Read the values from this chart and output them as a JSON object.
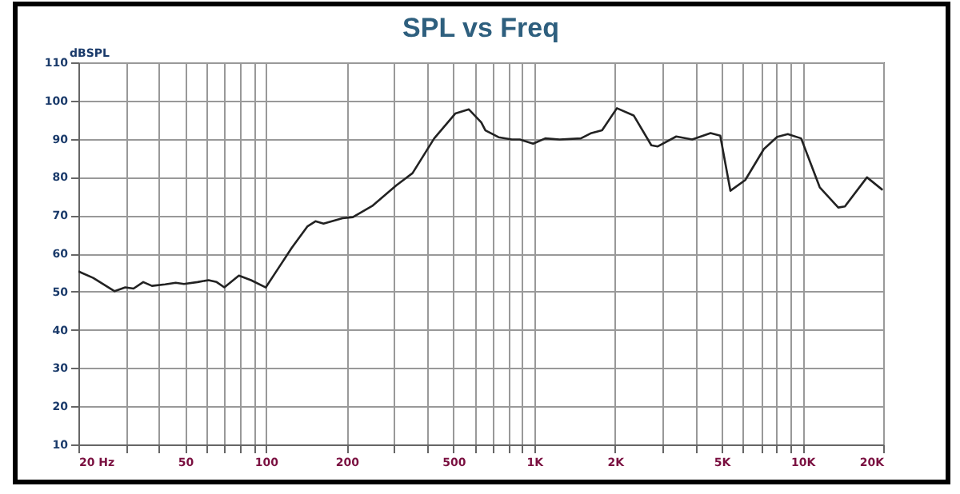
{
  "chart_data": {
    "type": "line",
    "title": "SPL vs Freq",
    "ylabel": "dBSPL",
    "x": [
      20,
      22.7,
      27.3,
      29.9,
      32.1,
      34.9,
      37.6,
      42.1,
      46.1,
      49.5,
      55.6,
      61.1,
      65.5,
      70,
      79.3,
      88,
      99.9,
      111,
      125,
      143,
      153,
      164,
      193,
      211,
      249,
      306,
      352,
      424,
      508,
      571,
      635,
      658,
      737,
      826,
      884,
      991,
      1100,
      1244,
      1493,
      1635,
      1791,
      2034,
      2349,
      2734,
      2889,
      3385,
      3883,
      4545,
      4938,
      5387,
      6121,
      7180,
      8050,
      8817,
      9888,
      11600,
      13600,
      14400,
      17400,
      19900
    ],
    "series": [
      {
        "color": "#222222",
        "values": [
          55.3,
          53.6,
          50.1,
          51.1,
          50.8,
          52.5,
          51.5,
          51.9,
          52.3,
          52,
          52.5,
          53,
          52.5,
          51.1,
          54.2,
          53,
          51.1,
          56,
          61.5,
          67.1,
          68.4,
          67.8,
          69.2,
          69.5,
          72.4,
          77.8,
          81,
          90.1,
          96.6,
          97.7,
          94.3,
          92.2,
          90.4,
          89.8,
          89.8,
          88.7,
          90.1,
          89.8,
          90.1,
          91.5,
          92.2,
          98,
          96.1,
          88.3,
          88,
          90.6,
          89.8,
          91.5,
          90.8,
          76.4,
          79.2,
          87.3,
          90.5,
          91.2,
          90.1,
          77.3,
          72,
          72.3,
          79.9,
          76.6
        ]
      }
    ],
    "log": "x",
    "xlim": [
      20,
      20000
    ],
    "ylim": [
      10,
      110
    ],
    "xticks": [
      {
        "value": 20,
        "label": "20 Hz"
      },
      {
        "value": 30,
        "label": null
      },
      {
        "value": 40,
        "label": null
      },
      50,
      {
        "value": 60,
        "label": null
      },
      {
        "value": 70,
        "label": null
      },
      {
        "value": 80,
        "label": null
      },
      {
        "value": 90,
        "label": null
      },
      100,
      200,
      {
        "value": 300,
        "label": null
      },
      {
        "value": 400,
        "label": null
      },
      500,
      {
        "value": 600,
        "label": null
      },
      {
        "value": 700,
        "label": null
      },
      {
        "value": 800,
        "label": null
      },
      {
        "value": 900,
        "label": null
      },
      {
        "value": 1000,
        "label": "1K"
      },
      {
        "value": 2000,
        "label": "2K"
      },
      {
        "value": 3000,
        "label": null
      },
      {
        "value": 4000,
        "label": null
      },
      {
        "value": 5000,
        "label": "5K"
      },
      {
        "value": 6000,
        "label": null
      },
      {
        "value": 7000,
        "label": null
      },
      {
        "value": 8000,
        "label": null
      },
      {
        "value": 9000,
        "label": null
      },
      {
        "value": 10000,
        "label": "10K"
      },
      {
        "value": 20000,
        "label": "20K"
      }
    ],
    "yticks": [
      10,
      20,
      30,
      40,
      50,
      60,
      70,
      80,
      90,
      100,
      110
    ],
    "grid": true,
    "marker": "none",
    "line_style": "solid"
  }
}
